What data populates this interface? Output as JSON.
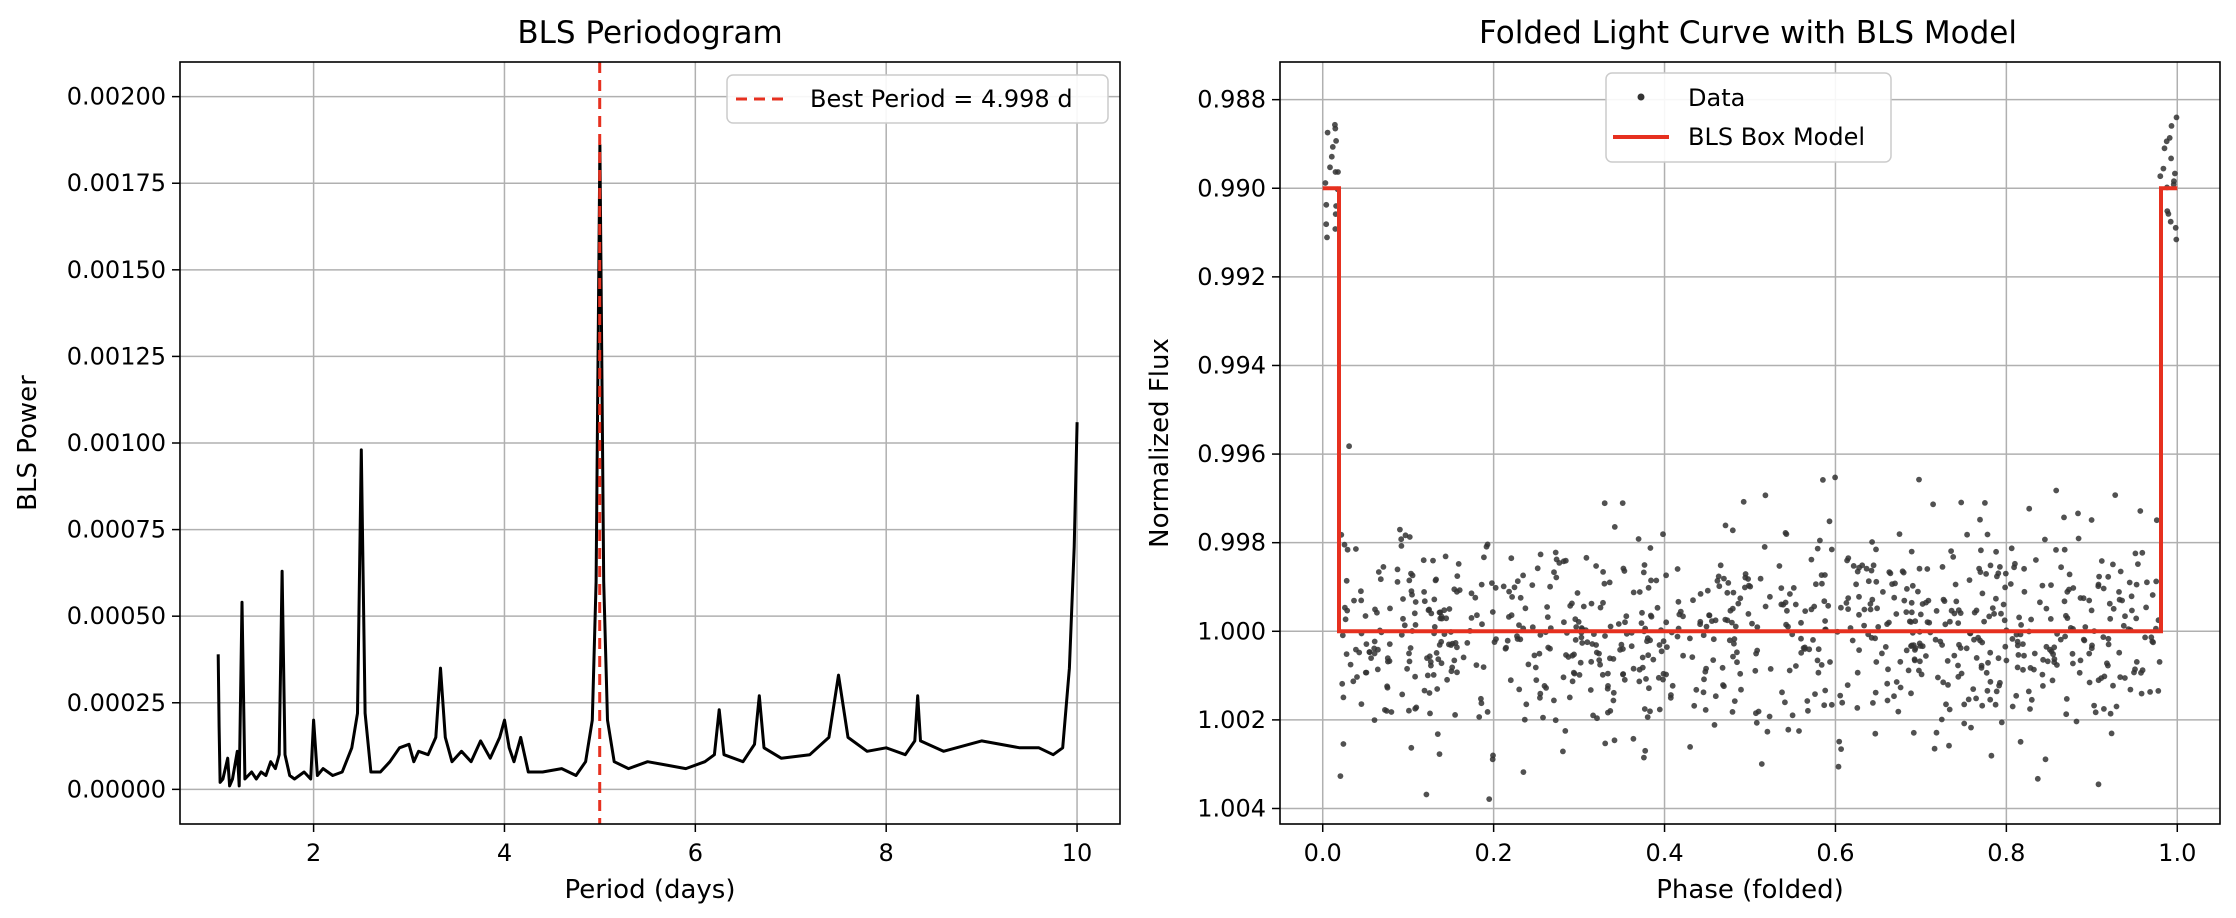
{
  "chart_data": [
    {
      "type": "line",
      "title": "BLS Periodogram",
      "xlabel": "Period (days)",
      "ylabel": "BLS Power",
      "xlim": [
        0.6,
        10.45
      ],
      "ylim": [
        -0.0001,
        0.0021
      ],
      "xticks": [
        2,
        4,
        6,
        8,
        10
      ],
      "xtick_labels": [
        "2",
        "4",
        "6",
        "8",
        "10"
      ],
      "yticks": [
        0,
        0.00025,
        0.0005,
        0.00075,
        0.001,
        0.00125,
        0.0015,
        0.00175,
        0.002
      ],
      "ytick_labels": [
        "0.00000",
        "0.00025",
        "0.00050",
        "0.00075",
        "0.00100",
        "0.00125",
        "0.00150",
        "0.00175",
        "0.00200"
      ],
      "grid": true,
      "legend_position": "top-right",
      "series": [
        {
          "color": "#000000",
          "x": [
            1.0,
            1.01,
            1.02,
            1.05,
            1.1,
            1.12,
            1.15,
            1.2,
            1.22,
            1.25,
            1.28,
            1.35,
            1.4,
            1.45,
            1.5,
            1.55,
            1.6,
            1.64,
            1.67,
            1.7,
            1.75,
            1.8,
            1.9,
            1.97,
            2.0,
            2.04,
            2.1,
            2.2,
            2.3,
            2.4,
            2.46,
            2.5,
            2.54,
            2.6,
            2.7,
            2.8,
            2.9,
            3.0,
            3.05,
            3.1,
            3.2,
            3.28,
            3.33,
            3.38,
            3.45,
            3.55,
            3.65,
            3.75,
            3.85,
            3.95,
            4.0,
            4.05,
            4.1,
            4.17,
            4.25,
            4.4,
            4.6,
            4.75,
            4.85,
            4.92,
            4.96,
            4.985,
            5.0,
            5.015,
            5.04,
            5.08,
            5.15,
            5.3,
            5.5,
            5.7,
            5.9,
            6.1,
            6.2,
            6.25,
            6.3,
            6.5,
            6.62,
            6.67,
            6.72,
            6.9,
            7.2,
            7.4,
            7.5,
            7.6,
            7.8,
            8.0,
            8.2,
            8.3,
            8.33,
            8.36,
            8.6,
            9.0,
            9.4,
            9.6,
            9.75,
            9.85,
            9.92,
            9.97,
            10.0
          ],
          "y": [
            0.00039,
            0.00018,
            2e-05,
            3e-05,
            9e-05,
            1e-05,
            3e-05,
            0.00011,
            1e-05,
            0.00054,
            3e-05,
            5e-05,
            3e-05,
            5e-05,
            4e-05,
            8e-05,
            6e-05,
            0.0001,
            0.00063,
            0.0001,
            4e-05,
            3e-05,
            5e-05,
            3e-05,
            0.0002,
            4e-05,
            6e-05,
            4e-05,
            5e-05,
            0.00012,
            0.00022,
            0.00098,
            0.00022,
            5e-05,
            5e-05,
            8e-05,
            0.00012,
            0.00013,
            8e-05,
            0.00011,
            0.0001,
            0.00015,
            0.00035,
            0.00015,
            8e-05,
            0.00011,
            8e-05,
            0.00014,
            9e-05,
            0.00015,
            0.0002,
            0.00012,
            8e-05,
            0.00015,
            5e-05,
            5e-05,
            6e-05,
            4e-05,
            8e-05,
            0.0002,
            0.0006,
            0.0014,
            0.00186,
            0.0014,
            0.0006,
            0.0002,
            8e-05,
            6e-05,
            8e-05,
            7e-05,
            6e-05,
            8e-05,
            0.0001,
            0.00023,
            0.0001,
            8e-05,
            0.00013,
            0.00027,
            0.00012,
            9e-05,
            0.0001,
            0.00015,
            0.00033,
            0.00015,
            0.00011,
            0.00012,
            0.0001,
            0.00014,
            0.00027,
            0.00014,
            0.00011,
            0.00014,
            0.00012,
            0.00012,
            0.0001,
            0.00012,
            0.00035,
            0.0007,
            0.00106
          ]
        }
      ],
      "vline": {
        "x": 4.998,
        "color": "#e6301f",
        "label": "Best Period = 4.998 d"
      }
    },
    {
      "type": "scatter",
      "title": "Folded Light Curve with BLS Model",
      "xlabel": "Phase (folded)",
      "ylabel": "Normalized Flux",
      "xlim": [
        -0.05,
        1.05
      ],
      "ylim": [
        1.00435,
        0.98715
      ],
      "y_inverted": true,
      "xticks": [
        0.0,
        0.2,
        0.4,
        0.6,
        0.8,
        1.0
      ],
      "xtick_labels": [
        "0.0",
        "0.2",
        "0.4",
        "0.6",
        "0.8",
        "1.0"
      ],
      "yticks": [
        0.988,
        0.99,
        0.992,
        0.994,
        0.996,
        0.998,
        1.0,
        1.002,
        1.004
      ],
      "ytick_labels": [
        "0.988",
        "0.990",
        "0.992",
        "0.994",
        "0.996",
        "0.998",
        "1.000",
        "1.002",
        "1.004"
      ],
      "grid": true,
      "legend_position": "top-center",
      "legend": [
        {
          "label": "Data",
          "marker": "dot",
          "color": "#333333"
        },
        {
          "label": "BLS Box Model",
          "marker": "line",
          "color": "#e6301f"
        }
      ],
      "data_cloud": {
        "phase_range": [
          0.02,
          0.98
        ],
        "mean_flux": 1.0,
        "sigma": 0.0012,
        "in_transit_flux": 0.99,
        "in_transit_sigma": 0.0009,
        "count": 900
      },
      "model": {
        "color": "#e6301f",
        "x": [
          0.0,
          0.019,
          0.019,
          0.981,
          0.981,
          1.0
        ],
        "y": [
          0.99,
          0.99,
          1.0,
          1.0,
          0.99,
          0.99
        ]
      }
    }
  ]
}
